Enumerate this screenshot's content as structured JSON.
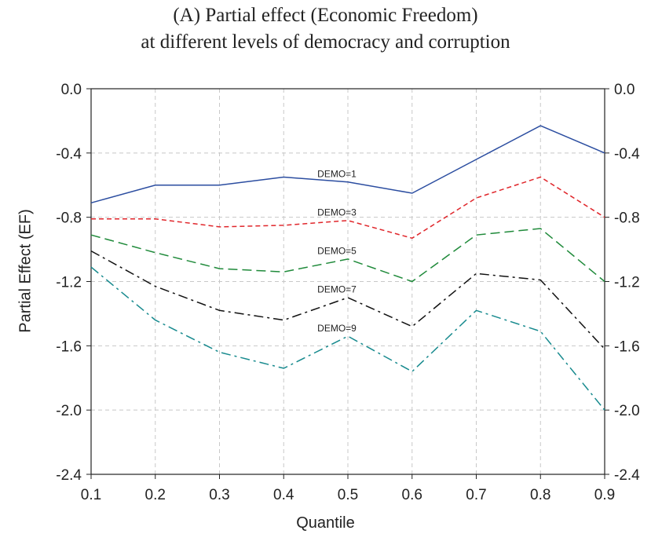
{
  "chart_data": {
    "type": "line",
    "title": "(A) Partial effect (Economic Freedom)",
    "subtitle": "at different levels of democracy and corruption",
    "xlabel": "Quantile",
    "ylabel": "Partial Effect (EF)",
    "x": [
      0.1,
      0.2,
      0.3,
      0.4,
      0.5,
      0.6,
      0.7,
      0.8,
      0.9
    ],
    "x_ticks": [
      "0.1",
      "0.2",
      "0.3",
      "0.4",
      "0.5",
      "0.6",
      "0.7",
      "0.8",
      "0.9"
    ],
    "y_ticks": [
      "0.0",
      "-0.4",
      "-0.8",
      "-1.2",
      "-1.6",
      "-2.0",
      "-2.4"
    ],
    "y_tick_values": [
      0.0,
      -0.4,
      -0.8,
      -1.2,
      -1.6,
      -2.0,
      -2.4
    ],
    "xlim": [
      0.1,
      0.9
    ],
    "ylim": [
      -2.4,
      0.0
    ],
    "grid": true,
    "y_axis_both_sides": true,
    "series": [
      {
        "name": "DEMO=1",
        "color": "#2b4da0",
        "dash": "solid",
        "values": [
          -0.71,
          -0.6,
          -0.6,
          -0.55,
          -0.58,
          -0.65,
          -0.44,
          -0.23,
          -0.4
        ],
        "label_x": 0.5,
        "label_y": -0.53
      },
      {
        "name": "DEMO=3",
        "color": "#e0262b",
        "dash": "short-dash",
        "values": [
          -0.81,
          -0.81,
          -0.86,
          -0.85,
          -0.82,
          -0.93,
          -0.68,
          -0.55,
          -0.8
        ],
        "label_x": 0.5,
        "label_y": -0.77
      },
      {
        "name": "DEMO=5",
        "color": "#1f8a3a",
        "dash": "long-dash",
        "values": [
          -0.91,
          -1.02,
          -1.12,
          -1.14,
          -1.06,
          -1.2,
          -0.91,
          -0.87,
          -1.2
        ],
        "label_x": 0.5,
        "label_y": -1.01
      },
      {
        "name": "DEMO=7",
        "color": "#111111",
        "dash": "dash-dot",
        "values": [
          -1.01,
          -1.23,
          -1.38,
          -1.44,
          -1.3,
          -1.48,
          -1.15,
          -1.19,
          -1.62
        ],
        "label_x": 0.5,
        "label_y": -1.25
      },
      {
        "name": "DEMO=9",
        "color": "#178a8e",
        "dash": "dash-dot",
        "values": [
          -1.11,
          -1.44,
          -1.64,
          -1.74,
          -1.54,
          -1.76,
          -1.38,
          -1.51,
          -2.0
        ],
        "label_x": 0.5,
        "label_y": -1.49
      }
    ]
  }
}
